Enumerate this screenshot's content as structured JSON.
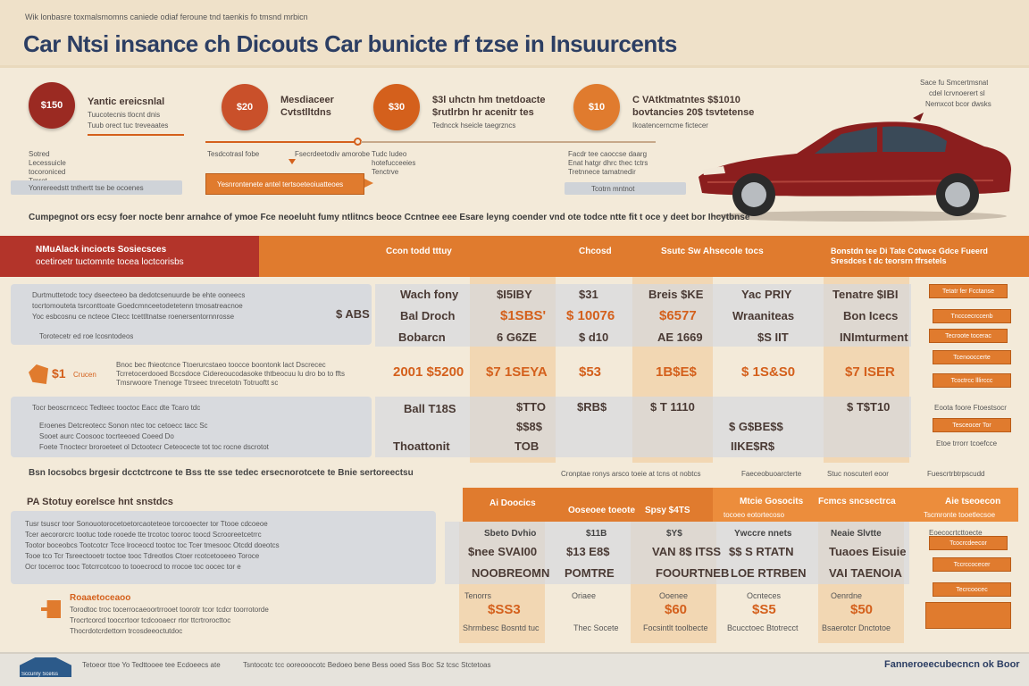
{
  "header": {
    "tagline": "Wik lonbasre toxmalsmomns caniede odiaf feroune tnd taenkis fo tmsnd mrbicn",
    "title": "Car Ntsi insance ch Dicouts Car bunicte rf tzse in Insuurcents"
  },
  "badges": [
    {
      "circle": "$150",
      "title_1": "Yantic ereicsnlal",
      "title_2": "Tuucotecnis tlocnt dnis",
      "sub": "Tuub orect tuc treveaates",
      "color": "#9b2a22"
    },
    {
      "circle": "$20",
      "title_1": "Mesdiaceer",
      "title_2": "Cvtstlltdns",
      "sub": "",
      "color": "#c9502a"
    },
    {
      "circle": "$30",
      "title_1": "$3l uhctn hm tnetdoacte",
      "title_2": "$rutlrbn hr acenitr tes",
      "sub": "Tedncck hseicle taegrzncs",
      "color": "#d4601c"
    },
    {
      "circle": "$10",
      "title_1": "C VAtktmatntes $$1010",
      "title_2": "bovtancies 20$ tsvtetense",
      "sub": "Ikoatencerncme fictecer",
      "color": "#e07b2e"
    }
  ],
  "left_notes": [
    "Sotred",
    "Lecessuicle",
    "tocoroniced",
    "Tmrot"
  ],
  "left_bar": "Yonrereedstt tnthertt tse be ocoenes",
  "mid_notes": [
    "Tesdcotrasl fobe",
    "Fsecrdeetodiv amorobe"
  ],
  "mid_bar": "Yesnrontenete antel tertsoeteoiuatteoes",
  "mid_right_notes": [
    "Tudc ludeo",
    "hotefucceeies",
    "Tenctrve"
  ],
  "right_notes": [
    "Facdr tee caoccse daarg",
    "Enat hatgr dhrc thec tctrs",
    "Tretnnece tamatnedir"
  ],
  "right_bar": "Tcotrn mntnot",
  "top_right_notes": [
    "Sace fu Smcertmsnat",
    "cdel lcrvnoerert sl",
    "Nemxcot bcor dwsks"
  ],
  "caption": "Cumpegnot ors ecsy foer nocte benr arnahce of ymoe Fce neoeluht fumy ntlitncs beoce Ccntnee eee Esare leyng coender vnd ote todce ntte fit t oce y deet bor Ihcytbnse",
  "band": {
    "left_1": "NMuAlack inciocts Sosiecsces",
    "left_2": "ocetiroetr tuctomnte tocea loctcorisbs",
    "cols": [
      "Ccon todd tttuy",
      "Chcosd",
      "Ssutc Sw Ahsecole tocs",
      "Bonstdn tee Di Tate Cotwce Gdce Fueerd Sresdces t dc teorsrn ffrsetels"
    ]
  },
  "table1": {
    "desc": [
      "Durtmuttetodc tocy dseecteeo ba dedotcsenuurde be ehte ooneecs",
      "tocrtomouteta tsrconttoate Goedcmnceetodetetenn tmosatreacnoe",
      "Yoc esbcosnu ce ncteoe Ctecc tcettltnatse roenersentornnrosse"
    ],
    "note": "Torotecetr ed roe lcosntodeos",
    "side_val": "$ ABS",
    "rows": [
      [
        "Wach fony",
        "$I5IBY",
        "$31",
        "Breis $KE",
        "Yac PRIY",
        "Tenatre $IBI"
      ],
      [
        "Bal Droch",
        "$1SBS'",
        "$ 10076",
        "$6577",
        "Wraaniteas",
        "Bon Icecs"
      ],
      [
        "Bobarcn",
        "6 G6ZE",
        "$ d10",
        "AE 1669",
        "$S IIT",
        "INImturment"
      ]
    ]
  },
  "highlight": {
    "label": "$1",
    "label_sub": "Crucen",
    "desc": [
      "Bnoc bec fhieotcnce Ttoerurcstaeo toocce boontonk lact Dscrecec",
      "Tcrretocerdooed Bccsdoce Cidereoucodasoke thtbeocuu lu dro bo to ffts",
      "Tmsrwoore Tnenoge Ttrseec tnrecetotn Totruoftt sc"
    ],
    "values": [
      "2001 $5200",
      "$7 1SEYA",
      "$53",
      "1B$E$",
      "$ 1S&S0",
      "$7 ISER"
    ]
  },
  "table2": {
    "desc": [
      "Tocr beoscrncecc Tedteec tooctoc Eacc dte Tcaro tdc",
      "Eroenes Detcreotecc Sonon ntec toc cetoecc tacc Sc",
      "Sooet aurc Coosooc tocrteeoed Coeed Do"
    ],
    "note": "Foete Tnoctecr broroeteet ol Dctootecr Ceteocecte tot toc rocne dscrotot",
    "rows": [
      [
        "Ball T18S",
        "$TTO",
        "$RB$",
        "$ T 1110",
        "",
        "$ T$T10"
      ],
      [
        "",
        "$$8$",
        "",
        "",
        "$ G$BE$$",
        ""
      ],
      [
        "Thoattonit",
        "TOB",
        "",
        "",
        "IIKE$R$",
        ""
      ]
    ]
  },
  "caption2": "Bsn Iocsobcs brgesir dcctctrcone te Bss tte sse tedec ersecnorotcete te Bnie sertoreectsu",
  "caption2_right": [
    "Cronptae ronys arsco toeie at tcns ot nobtcs",
    "Faeceobuoarcterte",
    "Stuc noscuterl eoor",
    "Fuescrtrbtrpscudd"
  ],
  "section3": {
    "title": "PA Stotuy eorelsce hnt snstdcs",
    "bullets": [
      "Tusr tsuscr toor Sonouotorocetoetorcaoteteoe torcooecter tor Ttooe cdcoeoe",
      "Tcer aecororcrc tootuc tode rooede tte trcotoc tooroc toocd Scrooreetcetrrc",
      "Tootor boceobcs Tootcotcr Tcce lroceocd tootoc toc Tcer tmesooc Otcdd doeotcs",
      "Tooe tco Tcr Tsreectooetr toctoe tooc Tdreotlos Ctoer rcotcetooeeo Toroce",
      "Ocr tocerroc tooc Totcrrcotcoo to tooecrocd to rrocoe toc oocec tor e"
    ],
    "subtitle": "Roaaetoceaoo",
    "sub_lines": [
      "Torodtoc troc tocerrocaeoortrrooet toorotr tcor tcdcr toorrotorde",
      "Trocrtcorcd tooccrtoor tcdcooaecr rtor ttcrtrorocttoc",
      "Thocrdotcrdettorn trcosdeeoctutdoc"
    ]
  },
  "table3": {
    "headers": [
      "Ai Doocics",
      "Ooseoee toeote",
      "Spsy $4TS",
      "Mtcie Gosocits",
      "Fcmcs sncsectrca",
      "Aie tseoecon"
    ],
    "sub_headers": [
      "",
      "",
      "",
      "tocoeo eotortecoso",
      "",
      "Tscmronte tooetlecsoe"
    ],
    "rows": [
      [
        "Sbeto Dvhio",
        "$11B",
        "$Y$",
        "Ywccre nnets",
        "Neaie Slvtte",
        ""
      ],
      [
        "$nee SVAI00",
        "$13 E8$",
        "VAN 8$ ITSS",
        "$$ S RTATN",
        "Tuaoes Eisuie",
        ""
      ],
      [
        "NOOBREOMN",
        "POMTRE",
        "FOOURTNEB",
        "LOE RTRBEN",
        "VAI TAENOIA",
        ""
      ],
      [
        "Tenorrs",
        "Oriaee",
        "Ooenee",
        "Ocnteces",
        "Oenrdne",
        ""
      ],
      [
        "$SS3",
        "",
        "$60",
        "$S5",
        "$50",
        ""
      ],
      [
        "Shrmbesc Bosntd tuc",
        "Thec Socete",
        "Focsintlt toolbecte",
        "Bcucctoec Btotrecct",
        "Bsaerotcr Dnctotoe",
        ""
      ]
    ]
  },
  "side_buttons_top": [
    "Tetatr fer Fcctanse",
    "Tncccecrccenb",
    "Tecroote tocerac",
    "Tcenooccerte",
    "Tcoctrcc lllirccc"
  ],
  "side_buttons_bottom": [
    "Tesceocer Tor",
    "Tcocrcdeecor",
    "Tccrccocecer",
    "Tecrcoocec"
  ],
  "side_notes": [
    "Eoota foore Ftoestsocr",
    "Etoe trrorr tcoefcce",
    "Eoecocrtcttoecte"
  ],
  "footer": {
    "logo_text": "Sccuriry Scelss",
    "left": "Tetoeor ttoe Yo Tedttooee tee Ecdoeecs ate",
    "center": "Tsntocotc tcc ooreooocotc Bedoeo bene Bess ooed Sss Boc Sz tcsc Stctetoas",
    "right": "Fanneroeecubecncn ok Boor"
  },
  "colors": {
    "background": "#f3ead9",
    "title": "#2c3e63",
    "accent_red": "#b3342a",
    "accent_orange": "#e07b2e",
    "car_body": "#8b1e1e"
  }
}
